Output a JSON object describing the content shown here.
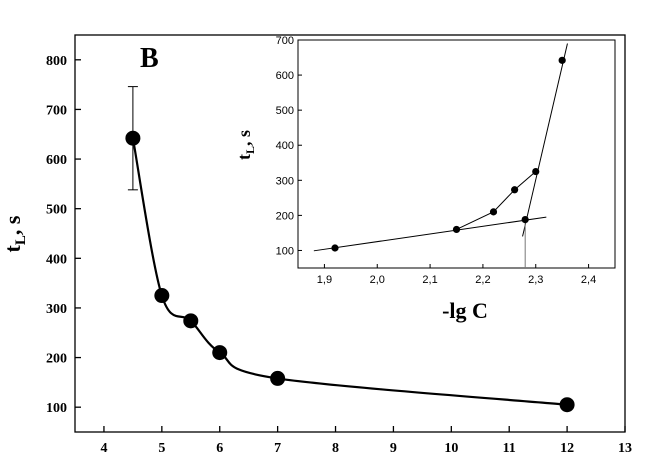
{
  "chart_data": [
    {
      "type": "scatter",
      "panel_label": "B",
      "ylabel_main": "t",
      "ylabel_sub": "L",
      "ylabel_suffix": ", s",
      "xlabel": "",
      "xlim": [
        3.5,
        13
      ],
      "ylim": [
        50,
        850
      ],
      "x_ticks": [
        4,
        5,
        6,
        7,
        8,
        9,
        10,
        11,
        12,
        13
      ],
      "y_ticks": [
        100,
        200,
        300,
        400,
        500,
        600,
        700,
        800
      ],
      "series": [
        {
          "x": [
            4.5,
            5.0,
            5.5,
            6.0,
            7.0,
            12.0
          ],
          "y": [
            642,
            325,
            274,
            210,
            158,
            105
          ],
          "error_bar": {
            "x": 4.5,
            "low": 538,
            "high": 746
          },
          "fit_curve": true
        }
      ]
    },
    {
      "type": "scatter",
      "ylabel_main": "t",
      "ylabel_sub": "L",
      "ylabel_suffix": ", s",
      "xlabel": "-lg C",
      "xlim": [
        1.85,
        2.45
      ],
      "ylim": [
        50,
        700
      ],
      "x_ticks": [
        "1,9",
        "2,0",
        "2,1",
        "2,2",
        "2,3",
        "2,4"
      ],
      "x_tick_values": [
        1.9,
        2.0,
        2.1,
        2.2,
        2.3,
        2.4
      ],
      "y_ticks": [
        100,
        200,
        300,
        400,
        500,
        600,
        700
      ],
      "series": [
        {
          "x": [
            1.92,
            2.15,
            2.22,
            2.26,
            2.3,
            2.35,
            2.28
          ],
          "y": [
            107,
            160,
            210,
            273,
            325,
            642,
            188
          ],
          "connected_points": [
            [
              2.15,
              160
            ],
            [
              2.22,
              210
            ],
            [
              2.26,
              273
            ],
            [
              2.3,
              325
            ]
          ]
        }
      ],
      "fit_lines": [
        {
          "x": [
            1.88,
            2.32
          ],
          "y": [
            99,
            195
          ]
        },
        {
          "x": [
            2.275,
            2.36
          ],
          "y": [
            140,
            690
          ]
        }
      ],
      "intersection_drop": {
        "x": 2.28,
        "y": 188
      }
    }
  ]
}
